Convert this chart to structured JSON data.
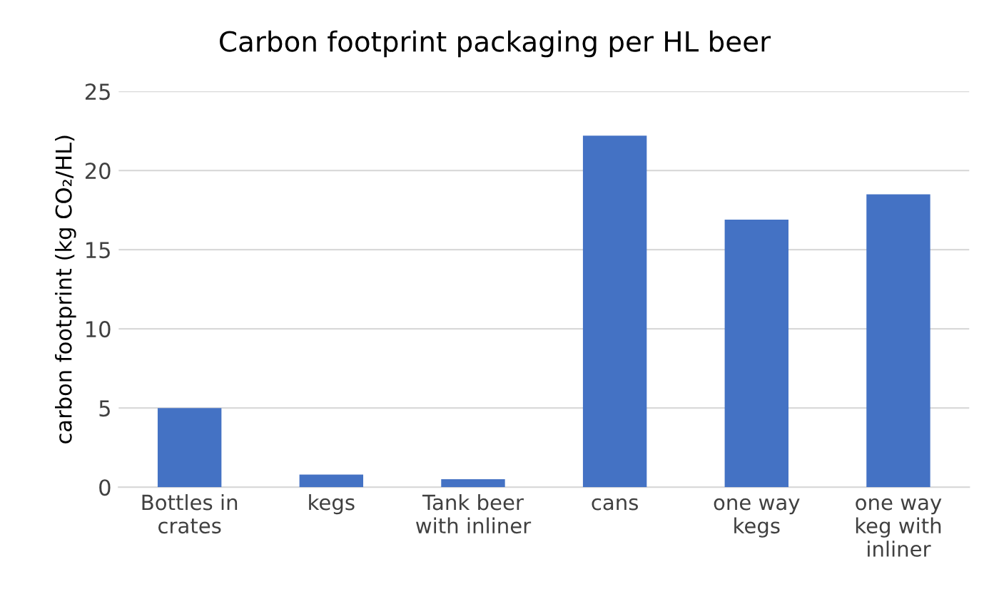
{
  "chart_data": {
    "type": "bar",
    "title": "Carbon footprint packaging per HL beer",
    "categories": [
      "Bottles in\ncrates",
      "kegs",
      "Tank beer\nwith inliner",
      "cans",
      "one way\nkegs",
      "one way\nkeg with\ninliner"
    ],
    "values": [
      5.0,
      0.8,
      0.5,
      22.2,
      16.9,
      18.5
    ],
    "color": "#4472c4",
    "ylabel": "carbon footprint (kg CO₂/HL)",
    "ylim": [
      0,
      25
    ],
    "yticks": [
      0,
      5,
      10,
      15,
      20,
      25
    ],
    "grid": "y"
  }
}
